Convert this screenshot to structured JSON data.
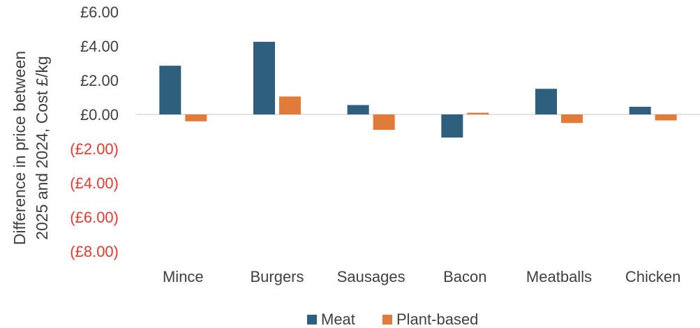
{
  "chart_data": {
    "type": "bar",
    "title": "",
    "ylabel_lines": [
      "Difference in price between",
      "2025 and 2024, Cost £/kg"
    ],
    "categories": [
      "Mince",
      "Burgers",
      "Sausages",
      "Bacon",
      "Meatballs",
      "Chicken"
    ],
    "series": [
      {
        "name": "Meat",
        "color": "#2e5f7e",
        "values": [
          2.85,
          4.25,
          0.55,
          -1.35,
          1.5,
          0.45
        ]
      },
      {
        "name": "Plant-based",
        "color": "#e07b39",
        "values": [
          -0.4,
          1.05,
          -0.9,
          0.1,
          -0.5,
          -0.35
        ]
      }
    ],
    "ylim": [
      -8,
      6
    ],
    "yticks": [
      6,
      4,
      2,
      0,
      -2,
      -4,
      -6,
      -8
    ],
    "ytick_labels": [
      "£6.00",
      "£4.00",
      "£2.00",
      "£0.00",
      "(£2.00)",
      "(£4.00)",
      "(£6.00)",
      "(£8.00)"
    ],
    "positive_tick_color": "#404040",
    "negative_tick_color": "#e03c31",
    "axis_line_color": "#d9d9d9",
    "grid": false,
    "legend_position": "bottom"
  }
}
